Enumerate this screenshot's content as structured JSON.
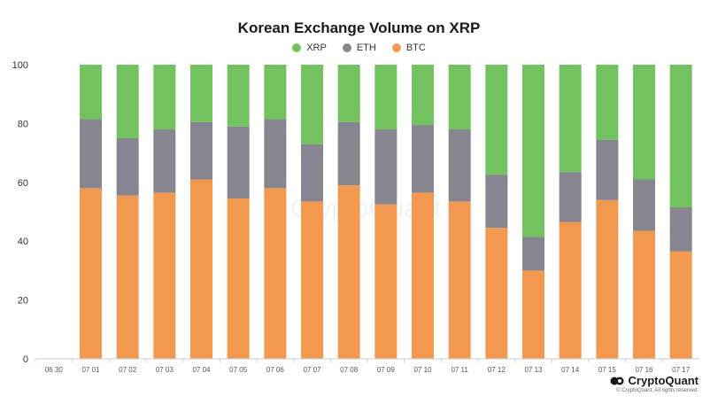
{
  "chart_data": {
    "type": "bar",
    "stacked": true,
    "title": "Korean Exchange Volume on XRP",
    "xlabel": "",
    "ylabel": "",
    "ylim": [
      0,
      100
    ],
    "yticks": [
      0,
      20,
      40,
      60,
      80,
      100
    ],
    "categories": [
      "06 30",
      "07 01",
      "07 02",
      "07 03",
      "07 04",
      "07 05",
      "07 06",
      "07 07",
      "07 08",
      "07 09",
      "07 10",
      "07 11",
      "07 12",
      "07 13",
      "07 14",
      "07 15",
      "07 16",
      "07 17"
    ],
    "series": [
      {
        "name": "BTC",
        "color": "#f2994f",
        "values": [
          null,
          58,
          55.5,
          56.5,
          61,
          54.5,
          58,
          53.5,
          59,
          52.5,
          56.5,
          53.5,
          44.5,
          30,
          46.5,
          54,
          43.5,
          36.5
        ]
      },
      {
        "name": "ETH",
        "color": "#878590",
        "values": [
          null,
          23.5,
          19.5,
          21.5,
          19.5,
          24.5,
          23.5,
          19.5,
          21.5,
          25.5,
          23,
          24.5,
          18,
          11.5,
          17,
          20.5,
          17.5,
          15
        ]
      },
      {
        "name": "XRP",
        "color": "#72c35f",
        "values": [
          null,
          18.5,
          25,
          22,
          19.5,
          21,
          18.5,
          27,
          19.5,
          22,
          20.5,
          22,
          37.5,
          58.5,
          36.5,
          25.5,
          39,
          48.5
        ]
      }
    ],
    "legend": [
      "XRP",
      "ETH",
      "BTC"
    ],
    "legend_position": "top-center",
    "grid": false
  },
  "watermark": "CryptoQuant",
  "footer": {
    "brand": "CryptoQuant",
    "copyright": "© CryptoQuant. All rights reserved."
  }
}
